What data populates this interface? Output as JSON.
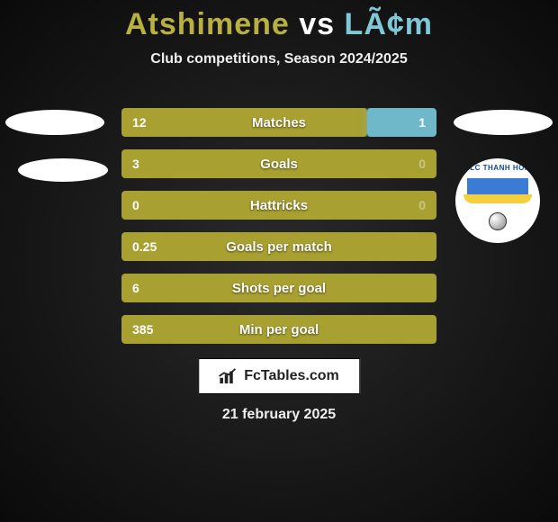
{
  "title_left": "Atshimene",
  "title_vs": "vs",
  "title_right": "LÃ¢m",
  "title_left_color": "#b8b040",
  "title_right_color": "#7fc8d8",
  "subtitle": "Club competitions, Season 2024/2025",
  "club_name": "FLC THANH HÓA",
  "bars": [
    {
      "label": "Matches",
      "left": "12",
      "right": "1",
      "left_pct": 78,
      "right_pct": 22,
      "split": true
    },
    {
      "label": "Goals",
      "left": "3",
      "right": "0",
      "left_pct": 100,
      "right_pct": 0,
      "split": false
    },
    {
      "label": "Hattricks",
      "left": "0",
      "right": "0",
      "left_pct": 100,
      "right_pct": 0,
      "split": false
    },
    {
      "label": "Goals per match",
      "left": "0.25",
      "right": "",
      "left_pct": 100,
      "right_pct": 0,
      "split": false
    },
    {
      "label": "Shots per goal",
      "left": "6",
      "right": "",
      "left_pct": 100,
      "right_pct": 0,
      "split": false
    },
    {
      "label": "Min per goal",
      "left": "385",
      "right": "",
      "left_pct": 100,
      "right_pct": 0,
      "split": false
    }
  ],
  "left_bar_color": "#a8a030",
  "right_bar_color": "#6fb8c9",
  "branding": "FcTables.com",
  "date": "21 february 2025"
}
